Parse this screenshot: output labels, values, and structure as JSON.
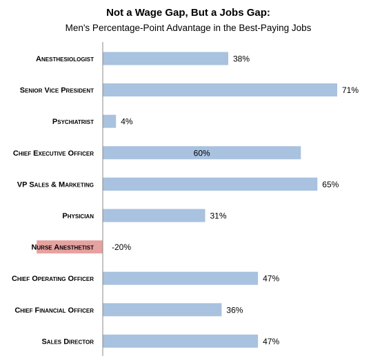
{
  "chart_data": {
    "type": "bar",
    "orientation": "horizontal",
    "title": "Not a Wage Gap, But a Jobs Gap:",
    "subtitle": "Men's Percentage-Point Advantage in the Best-Paying Jobs",
    "xlabel": "",
    "ylabel": "",
    "xlim": [
      -20,
      75
    ],
    "grid": false,
    "legend": "none",
    "categories": [
      "Anesthesiologist",
      "Senior Vice President",
      "Psychiatrist",
      "Chief Executive Officer",
      "VP Sales & Marketing",
      "Physician",
      "Nurse Anesthetist",
      "Chief Operating Officer",
      "Chief Financial Officer",
      "Sales Director"
    ],
    "values": [
      38,
      71,
      4,
      60,
      65,
      31,
      -20,
      47,
      36,
      47
    ],
    "data_labels": [
      "38%",
      "71%",
      "4%",
      "60%",
      "65%",
      "31%",
      "-20%",
      "47%",
      "36%",
      "47%"
    ],
    "colors": {
      "positive": "#a8c2e0",
      "negative": "#e6a2a0",
      "axis": "#888888"
    }
  }
}
